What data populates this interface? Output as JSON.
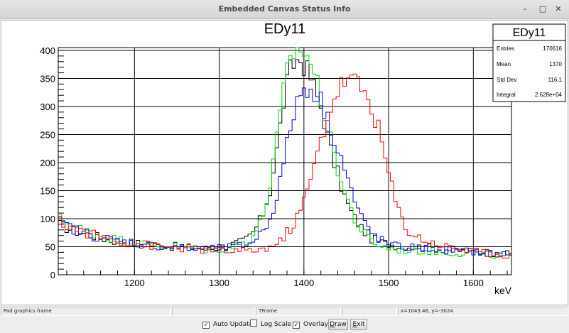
{
  "window": {
    "title": "Embedded Canvas Status Info",
    "minimize_glyph": "–",
    "maximize_glyph": "□",
    "close_glyph": "✕"
  },
  "chart_data": {
    "type": "line",
    "title": "EDy11",
    "xlabel": "keV",
    "ylabel": "",
    "xlim": [
      1110,
      1645
    ],
    "ylim": [
      0,
      405
    ],
    "x_ticks": [
      1200,
      1300,
      1400,
      1500,
      1600
    ],
    "y_ticks": [
      0,
      50,
      100,
      150,
      200,
      250,
      300,
      350,
      400
    ],
    "grid": true,
    "bin_width": 4,
    "series": [
      {
        "color": "#000000",
        "x": [
          1110,
          1130,
          1150,
          1170,
          1190,
          1210,
          1230,
          1250,
          1270,
          1290,
          1310,
          1330,
          1340,
          1350,
          1360,
          1370,
          1375,
          1380,
          1385,
          1390,
          1395,
          1400,
          1405,
          1410,
          1415,
          1420,
          1425,
          1430,
          1440,
          1450,
          1460,
          1470,
          1480,
          1490,
          1500,
          1510,
          1530,
          1550,
          1570,
          1590,
          1610,
          1630,
          1645
        ],
        "y": [
          90,
          78,
          70,
          62,
          58,
          55,
          52,
          50,
          48,
          46,
          52,
          60,
          75,
          100,
          150,
          240,
          300,
          340,
          370,
          380,
          385,
          375,
          360,
          345,
          320,
          300,
          270,
          230,
          180,
          130,
          100,
          80,
          65,
          58,
          55,
          52,
          50,
          48,
          45,
          42,
          40,
          38,
          36
        ]
      },
      {
        "color": "#00dd00",
        "x": [
          1110,
          1130,
          1150,
          1170,
          1190,
          1210,
          1230,
          1250,
          1270,
          1290,
          1310,
          1330,
          1340,
          1350,
          1360,
          1370,
          1375,
          1380,
          1385,
          1390,
          1395,
          1400,
          1405,
          1410,
          1415,
          1420,
          1425,
          1430,
          1440,
          1450,
          1460,
          1470,
          1480,
          1490,
          1500,
          1510,
          1530,
          1550,
          1570,
          1590,
          1610,
          1630,
          1645
        ],
        "y": [
          100,
          85,
          75,
          66,
          60,
          55,
          52,
          50,
          47,
          44,
          48,
          58,
          70,
          95,
          160,
          260,
          320,
          360,
          390,
          400,
          402,
          398,
          390,
          370,
          345,
          315,
          285,
          250,
          190,
          140,
          100,
          75,
          60,
          52,
          48,
          45,
          43,
          42,
          40,
          38,
          36,
          34,
          33
        ]
      },
      {
        "color": "#0000ff",
        "x": [
          1110,
          1130,
          1150,
          1170,
          1190,
          1210,
          1230,
          1250,
          1270,
          1290,
          1310,
          1330,
          1340,
          1350,
          1360,
          1370,
          1375,
          1380,
          1385,
          1390,
          1395,
          1400,
          1405,
          1410,
          1415,
          1420,
          1425,
          1430,
          1440,
          1450,
          1460,
          1470,
          1480,
          1490,
          1500,
          1510,
          1530,
          1550,
          1570,
          1590,
          1610,
          1630,
          1645
        ],
        "y": [
          95,
          80,
          70,
          63,
          58,
          54,
          51,
          48,
          46,
          45,
          48,
          52,
          60,
          75,
          100,
          150,
          190,
          230,
          270,
          300,
          320,
          330,
          335,
          330,
          320,
          310,
          290,
          270,
          230,
          180,
          130,
          95,
          75,
          62,
          55,
          50,
          48,
          46,
          44,
          42,
          40,
          38,
          37
        ]
      },
      {
        "color": "#ff0000",
        "x": [
          1110,
          1130,
          1150,
          1170,
          1190,
          1210,
          1230,
          1250,
          1270,
          1290,
          1310,
          1330,
          1350,
          1370,
          1380,
          1390,
          1400,
          1410,
          1420,
          1430,
          1440,
          1450,
          1460,
          1470,
          1480,
          1490,
          1500,
          1510,
          1520,
          1530,
          1550,
          1570,
          1590,
          1610,
          1630,
          1645
        ],
        "y": [
          95,
          82,
          72,
          64,
          58,
          54,
          50,
          48,
          46,
          44,
          42,
          42,
          45,
          55,
          75,
          95,
          130,
          180,
          240,
          290,
          330,
          350,
          345,
          330,
          300,
          250,
          180,
          120,
          85,
          70,
          58,
          50,
          44,
          40,
          37,
          35
        ]
      }
    ]
  },
  "stats": {
    "name": "EDy11",
    "rows": [
      {
        "label": "Entries",
        "value": "170616"
      },
      {
        "label": "Mean",
        "value": "1370"
      },
      {
        "label": "Std Dev",
        "value": "116.1"
      },
      {
        "label": "Integral",
        "value": "2.628e+04"
      }
    ]
  },
  "status": {
    "cell1": "Pad graphics frame",
    "cell2": "",
    "cell3": "TFrame",
    "cell4": "",
    "cell5": "x=1043.46, y=-3024"
  },
  "controls": {
    "auto_update": {
      "label": "Auto Update",
      "checked": true
    },
    "log_scale": {
      "label": "Log Scale",
      "checked": false
    },
    "overlay": {
      "label": "Overlay",
      "checked": true
    },
    "draw_button": {
      "u": "D",
      "rest": "raw"
    },
    "exit_button": {
      "u": "E",
      "rest": "xit"
    }
  }
}
